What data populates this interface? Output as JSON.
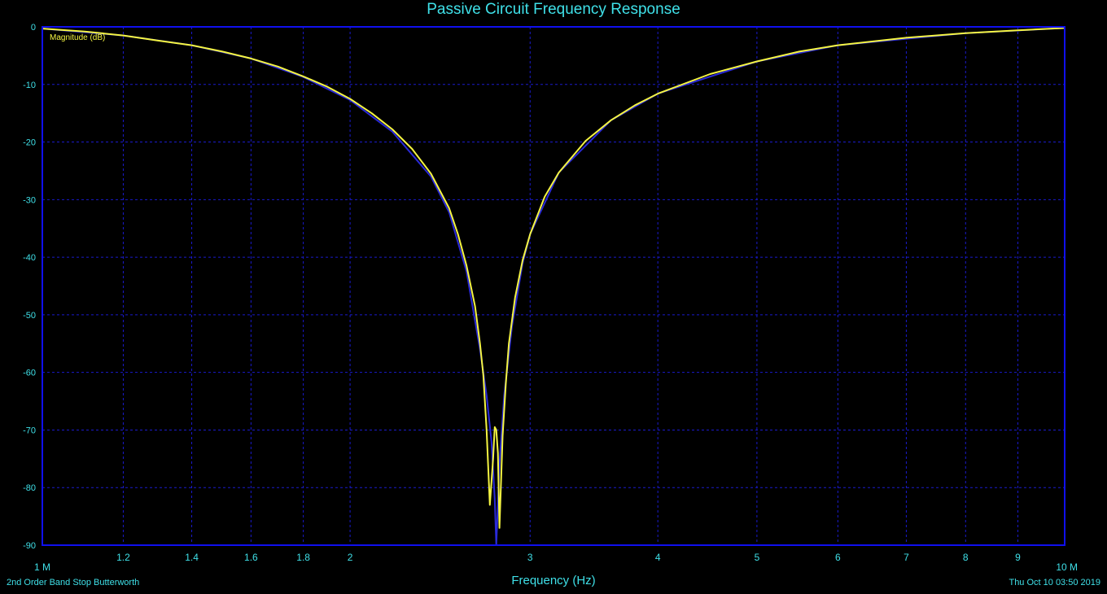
{
  "chart_data": {
    "type": "line",
    "title": "Passive Circuit Frequency Response",
    "xlabel": "Frequency (Hz)",
    "ylabel": "",
    "x_scale": "log",
    "xlim": [
      1000000,
      10000000
    ],
    "ylim": [
      -90,
      0
    ],
    "grid": true,
    "y_ticks": [
      0,
      -10,
      -20,
      -30,
      -40,
      -50,
      -60,
      -70,
      -80,
      -90
    ],
    "y_tick_labels": [
      "0",
      "-10",
      "-20",
      "-30",
      "-40",
      "-50",
      "-60",
      "-70",
      "-80",
      "-90"
    ],
    "x_ticks": [
      1000000,
      1200000,
      1400000,
      1600000,
      1800000,
      2000000,
      3000000,
      4000000,
      5000000,
      6000000,
      7000000,
      8000000,
      9000000,
      10000000
    ],
    "x_tick_labels": [
      "1 M",
      "1.2",
      "1.4",
      "1.6",
      "1.8",
      "2",
      "3",
      "4",
      "5",
      "6",
      "7",
      "8",
      "9",
      "10 M"
    ],
    "series_label": "Magnitude (dB)",
    "footer_left": "2nd Order Band Stop Butterworth",
    "footer_right": "Thu Oct 10 03:50 2019",
    "colors": {
      "background": "#000000",
      "frame": "#1010ee",
      "grid": "#1a1acc",
      "text": "#3fe0e8",
      "series": "#f5f542",
      "reference": "#2a2ad8"
    },
    "series": [
      {
        "name": "Magnitude (dB)",
        "x": [
          1000000,
          1100000,
          1200000,
          1300000,
          1400000,
          1500000,
          1600000,
          1700000,
          1800000,
          1900000,
          2000000,
          2100000,
          2200000,
          2300000,
          2400000,
          2500000,
          2550000,
          2600000,
          2650000,
          2680000,
          2700000,
          2720000,
          2740000,
          2760000,
          2770000,
          2780000,
          2790000,
          2800000,
          2820000,
          2840000,
          2860000,
          2900000,
          2950000,
          3000000,
          3100000,
          3200000,
          3400000,
          3600000,
          3800000,
          4000000,
          4500000,
          5000000,
          5500000,
          6000000,
          7000000,
          8000000,
          9000000,
          10000000
        ],
        "y": [
          -0.3,
          -0.8,
          -1.5,
          -2.4,
          -3.2,
          -4.3,
          -5.5,
          -6.9,
          -8.6,
          -10.4,
          -12.5,
          -15.0,
          -17.8,
          -21.2,
          -25.5,
          -31.5,
          -36.0,
          -41.5,
          -48.5,
          -55.0,
          -60.5,
          -70.0,
          -83.0,
          -75.0,
          -69.5,
          -70.0,
          -74.0,
          -87.0,
          -71.0,
          -62.0,
          -55.0,
          -47.0,
          -40.5,
          -36.0,
          -29.5,
          -25.3,
          -19.8,
          -16.2,
          -13.6,
          -11.6,
          -8.2,
          -6.0,
          -4.3,
          -3.2,
          -1.9,
          -1.1,
          -0.6,
          -0.2
        ]
      },
      {
        "name": "",
        "x": [
          1000000,
          1200000,
          1400000,
          1600000,
          1800000,
          2000000,
          2200000,
          2400000,
          2500000,
          2600000,
          2680000,
          2720000,
          2750000,
          2770000,
          2780000,
          2800000,
          2830000,
          2880000,
          2950000,
          3000000,
          3200000,
          3600000,
          4000000,
          5000000,
          6000000,
          8000000,
          10000000
        ],
        "y": [
          -0.3,
          -1.5,
          -3.2,
          -5.5,
          -8.7,
          -12.7,
          -18.2,
          -26.0,
          -32.2,
          -42.5,
          -56.0,
          -64.0,
          -72.0,
          -82.0,
          -90.0,
          -76.0,
          -64.0,
          -52.0,
          -41.0,
          -36.0,
          -25.3,
          -16.2,
          -11.6,
          -6.0,
          -3.2,
          -1.1,
          -0.2
        ]
      }
    ]
  }
}
